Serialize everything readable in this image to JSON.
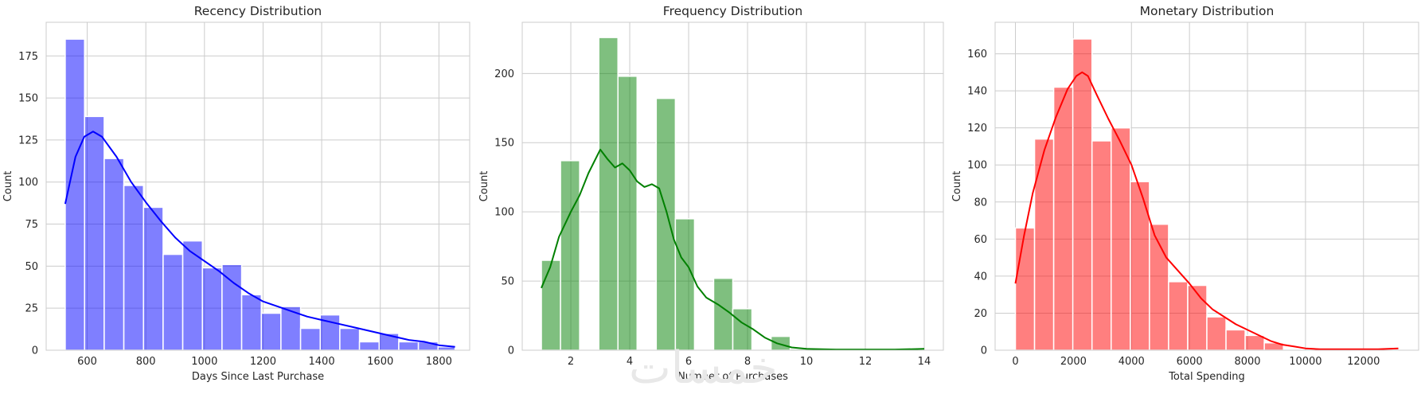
{
  "chart_data": [
    {
      "type": "bar",
      "title": "Recency Distribution",
      "xlabel": "Days Since Last Purchase",
      "ylabel": "Count",
      "xlim": [
        460,
        1905
      ],
      "ylim": [
        0,
        195
      ],
      "xticks": [
        600,
        800,
        1000,
        1200,
        1400,
        1600,
        1800
      ],
      "yticks": [
        0,
        25,
        50,
        75,
        100,
        125,
        150,
        175
      ],
      "color": "#0000ff",
      "bins": [
        {
          "x0": 525,
          "x1": 591,
          "value": 185
        },
        {
          "x0": 591,
          "x1": 658,
          "value": 139
        },
        {
          "x0": 658,
          "x1": 725,
          "value": 114
        },
        {
          "x0": 725,
          "x1": 792,
          "value": 98
        },
        {
          "x0": 792,
          "x1": 859,
          "value": 85
        },
        {
          "x0": 859,
          "x1": 926,
          "value": 57
        },
        {
          "x0": 926,
          "x1": 993,
          "value": 65
        },
        {
          "x0": 993,
          "x1": 1060,
          "value": 49
        },
        {
          "x0": 1060,
          "x1": 1127,
          "value": 51
        },
        {
          "x0": 1127,
          "x1": 1194,
          "value": 33
        },
        {
          "x0": 1194,
          "x1": 1261,
          "value": 22
        },
        {
          "x0": 1261,
          "x1": 1328,
          "value": 26
        },
        {
          "x0": 1328,
          "x1": 1395,
          "value": 13
        },
        {
          "x0": 1395,
          "x1": 1462,
          "value": 21
        },
        {
          "x0": 1462,
          "x1": 1529,
          "value": 13
        },
        {
          "x0": 1529,
          "x1": 1596,
          "value": 5
        },
        {
          "x0": 1596,
          "x1": 1663,
          "value": 10
        },
        {
          "x0": 1663,
          "x1": 1730,
          "value": 5
        },
        {
          "x0": 1730,
          "x1": 1797,
          "value": 5
        },
        {
          "x0": 1797,
          "x1": 1855,
          "value": 2
        }
      ],
      "kde": {
        "x": [
          525,
          560,
          590,
          620,
          650,
          700,
          750,
          800,
          850,
          900,
          950,
          1000,
          1050,
          1100,
          1150,
          1200,
          1250,
          1300,
          1350,
          1400,
          1450,
          1500,
          1550,
          1600,
          1650,
          1700,
          1750,
          1800,
          1855
        ],
        "y": [
          87,
          115,
          127,
          130,
          127,
          115,
          100,
          88,
          77,
          67,
          59,
          53,
          47,
          40,
          34,
          29,
          26,
          23,
          20,
          18,
          16,
          14,
          12,
          10,
          8,
          6,
          5,
          3,
          2
        ]
      }
    },
    {
      "type": "bar",
      "title": "Frequency Distribution",
      "xlabel": "Number of Purchases",
      "ylabel": "Count",
      "xlim": [
        0.35,
        14.65
      ],
      "ylim": [
        0,
        237
      ],
      "xticks": [
        2,
        4,
        6,
        8,
        10,
        12,
        14
      ],
      "yticks": [
        0,
        50,
        100,
        150,
        200
      ],
      "color": "#008000",
      "bins": [
        {
          "x0": 1.0,
          "x1": 1.65,
          "value": 65
        },
        {
          "x0": 1.65,
          "x1": 2.3,
          "value": 137
        },
        {
          "x0": 2.3,
          "x1": 2.95,
          "value": 0
        },
        {
          "x0": 2.95,
          "x1": 3.6,
          "value": 226
        },
        {
          "x0": 3.6,
          "x1": 4.25,
          "value": 198
        },
        {
          "x0": 4.25,
          "x1": 4.9,
          "value": 0
        },
        {
          "x0": 4.9,
          "x1": 5.55,
          "value": 182
        },
        {
          "x0": 5.55,
          "x1": 6.2,
          "value": 95
        },
        {
          "x0": 6.2,
          "x1": 6.85,
          "value": 0
        },
        {
          "x0": 6.85,
          "x1": 7.5,
          "value": 52
        },
        {
          "x0": 7.5,
          "x1": 8.15,
          "value": 30
        },
        {
          "x0": 8.15,
          "x1": 8.8,
          "value": 0
        },
        {
          "x0": 8.8,
          "x1": 9.45,
          "value": 10
        },
        {
          "x0": 9.45,
          "x1": 10.1,
          "value": 1
        }
      ],
      "kde": {
        "x": [
          1.0,
          1.3,
          1.6,
          2.0,
          2.3,
          2.6,
          3.0,
          3.25,
          3.5,
          3.75,
          4.0,
          4.25,
          4.5,
          4.75,
          5.0,
          5.25,
          5.5,
          5.75,
          6.0,
          6.3,
          6.6,
          7.0,
          7.4,
          7.8,
          8.2,
          8.6,
          9.0,
          9.5,
          10.0,
          11.0,
          12.0,
          13.0,
          14.0
        ],
        "y": [
          45,
          60,
          82,
          100,
          112,
          128,
          145,
          138,
          132,
          135,
          130,
          122,
          118,
          120,
          117,
          100,
          80,
          67,
          60,
          46,
          38,
          33,
          27,
          20,
          15,
          9,
          5,
          2,
          1,
          0.5,
          0.5,
          0.5,
          1
        ]
      }
    },
    {
      "type": "bar",
      "title": "Monetary Distribution",
      "xlabel": "Total Spending",
      "ylabel": "Count",
      "xlim": [
        -700,
        13900
      ],
      "ylim": [
        0,
        177
      ],
      "xticks": [
        0,
        2000,
        4000,
        6000,
        8000,
        10000,
        12000
      ],
      "yticks": [
        0,
        20,
        40,
        60,
        80,
        100,
        120,
        140,
        160
      ],
      "color": "#ff0000",
      "bins": [
        {
          "x0": 0,
          "x1": 660,
          "value": 66
        },
        {
          "x0": 660,
          "x1": 1320,
          "value": 114
        },
        {
          "x0": 1320,
          "x1": 1980,
          "value": 142
        },
        {
          "x0": 1980,
          "x1": 2640,
          "value": 168
        },
        {
          "x0": 2640,
          "x1": 3300,
          "value": 113
        },
        {
          "x0": 3300,
          "x1": 3960,
          "value": 120
        },
        {
          "x0": 3960,
          "x1": 4620,
          "value": 91
        },
        {
          "x0": 4620,
          "x1": 5280,
          "value": 68
        },
        {
          "x0": 5280,
          "x1": 5940,
          "value": 37
        },
        {
          "x0": 5940,
          "x1": 6600,
          "value": 35
        },
        {
          "x0": 6600,
          "x1": 7260,
          "value": 18
        },
        {
          "x0": 7260,
          "x1": 7920,
          "value": 11
        },
        {
          "x0": 7920,
          "x1": 8580,
          "value": 8
        },
        {
          "x0": 8580,
          "x1": 9240,
          "value": 4
        }
      ],
      "kde": {
        "x": [
          0,
          300,
          600,
          1000,
          1400,
          1800,
          2100,
          2300,
          2500,
          2800,
          3200,
          3600,
          4000,
          4400,
          4800,
          5200,
          5600,
          6000,
          6400,
          6800,
          7200,
          7600,
          8000,
          8400,
          8800,
          9200,
          9600,
          10000,
          10500,
          11000,
          11500,
          12000,
          12500,
          13200
        ],
        "y": [
          36,
          62,
          85,
          108,
          126,
          141,
          148,
          150,
          148,
          138,
          125,
          113,
          100,
          82,
          62,
          50,
          43,
          36,
          28,
          22,
          18,
          14,
          11,
          8,
          5,
          3,
          2,
          1,
          0.5,
          0.5,
          0.5,
          0.5,
          0.5,
          1
        ]
      }
    }
  ],
  "watermark": "خمسات"
}
